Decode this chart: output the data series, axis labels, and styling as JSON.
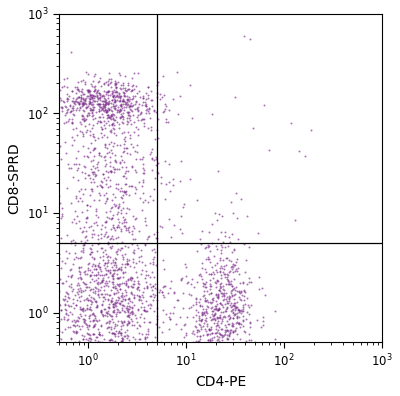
{
  "xlabel": "CD4-PE",
  "ylabel": "CD8-SPRD",
  "dot_color": "#7B2D8B",
  "dot_alpha": 0.65,
  "dot_size": 2.0,
  "xgate": 5.0,
  "ygate": 5.0,
  "xlim": [
    0.5,
    1000
  ],
  "ylim": [
    0.5,
    1000
  ],
  "seed": 42,
  "background_color": "#ffffff",
  "font_size_label": 10,
  "font_size_tick": 8.5
}
